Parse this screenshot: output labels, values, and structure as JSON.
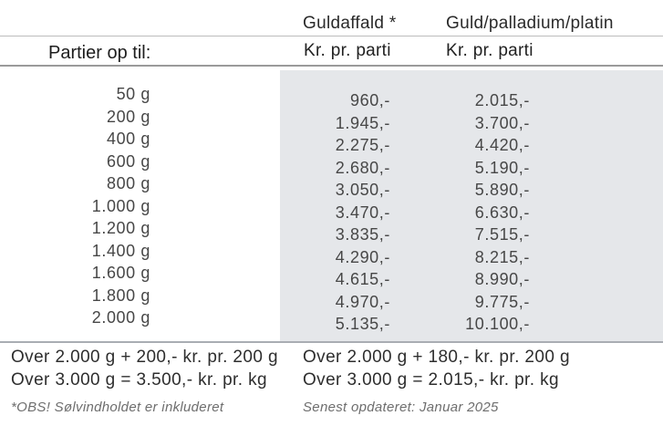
{
  "header": {
    "row_label": "Partier op til:",
    "col1_title": "Guldaffald *",
    "col2_title": "Guld/palladium/platin",
    "col1_unit": "Kr. pr. parti",
    "col2_unit": "Kr. pr. parti"
  },
  "table": {
    "weights": [
      "50 g",
      "200 g",
      "400 g",
      "600 g",
      "800 g",
      "1.000 g",
      "1.200 g",
      "1.400 g",
      "1.600 g",
      "1.800 g",
      "2.000 g"
    ],
    "guldaffald_prices": [
      "960,-",
      "1.945,-",
      "2.275,-",
      "2.680,-",
      "3.050,-",
      "3.470,-",
      "3.835,-",
      "4.290,-",
      "4.615,-",
      "4.970,-",
      "5.135,-"
    ],
    "guld_palladium_platin_prices": [
      "2.015,-",
      "3.700,-",
      "4.420,-",
      "5.190,-",
      "5.890,-",
      "6.630,-",
      "7.515,-",
      "8.215,-",
      "8.990,-",
      "9.775,-",
      "10.100,-"
    ]
  },
  "footer": {
    "left_line1": "Over 2.000 g + 200,- kr. pr. 200 g",
    "left_line2": "Over 3.000 g = 3.500,- kr. pr. kg",
    "right_line1": "Over 2.000 g + 180,- kr. pr. 200 g",
    "right_line2": "Over 3.000 g = 2.015,- kr. pr. kg",
    "left_note": "*OBS! Sølvindholdet er inkluderet",
    "right_note": "Senest opdateret: Januar 2025"
  },
  "colors": {
    "highlight_bg": "#e5e7ea",
    "rule_top": "#bcbcbc",
    "rule_mid": "#9a9a9a",
    "rule_bottom": "#a9adb3"
  }
}
